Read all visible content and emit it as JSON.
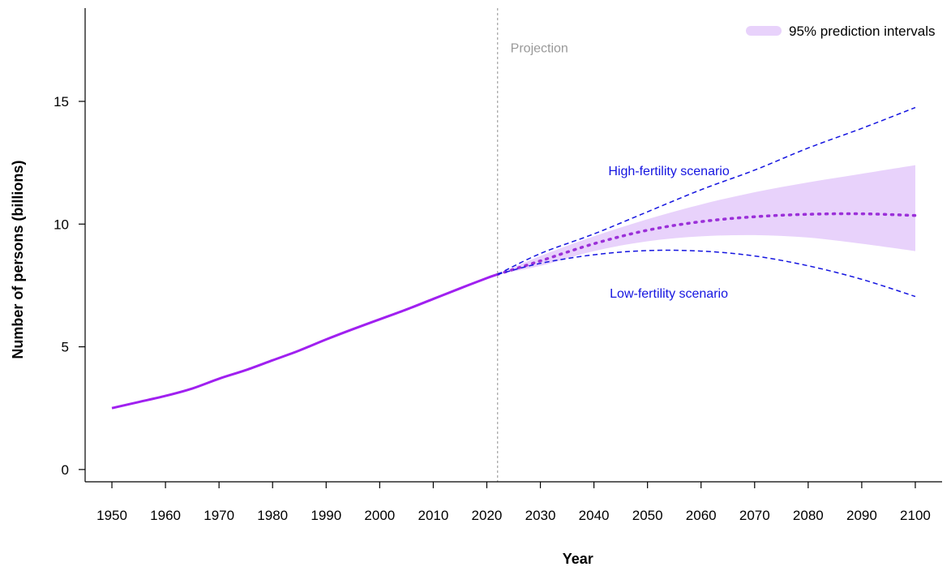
{
  "chart_data": {
    "type": "line",
    "title": "",
    "xlabel": "Year",
    "ylabel": "Number of persons (billions)",
    "xlim": [
      1945,
      2105
    ],
    "ylim": [
      -0.5,
      18.8
    ],
    "x_ticks": [
      1950,
      1960,
      1970,
      1980,
      1990,
      2000,
      2010,
      2020,
      2030,
      2040,
      2050,
      2060,
      2070,
      2080,
      2090,
      2100
    ],
    "y_ticks": [
      0,
      5,
      10,
      15
    ],
    "x_tick_labels": [
      "1950",
      "1960",
      "1970",
      "1980",
      "1990",
      "2000",
      "2010",
      "2020",
      "2030",
      "2040",
      "2050",
      "2060",
      "2070",
      "2080",
      "2090",
      "2100"
    ],
    "y_tick_labels": [
      "0",
      "5",
      "10",
      "15"
    ],
    "projection_start": 2022,
    "projection_label": "Projection",
    "legend": {
      "label": "95% prediction intervals",
      "position": "top-right"
    },
    "annotations": {
      "high": {
        "text": "High-fertility scenario",
        "x": 2054,
        "y": 12.0
      },
      "low": {
        "text": "Low-fertility scenario",
        "x": 2054,
        "y": 7.0
      }
    },
    "colors": {
      "observed": "#a020f0",
      "median": "#9b30d9",
      "scenario": "#1515e0",
      "interval": "#e8d2fb",
      "projection_line": "#aaaaaa",
      "projection_text": "#999999"
    },
    "series": [
      {
        "style": "solid",
        "x": [
          1950,
          1955,
          1960,
          1965,
          1970,
          1975,
          1980,
          1985,
          1990,
          1995,
          2000,
          2005,
          2010,
          2015,
          2020,
          2022
        ],
        "y": [
          2.5,
          2.75,
          3.0,
          3.3,
          3.7,
          4.05,
          4.45,
          4.85,
          5.3,
          5.72,
          6.12,
          6.52,
          6.95,
          7.38,
          7.8,
          7.95
        ]
      },
      {
        "name": "95% prediction intervals",
        "style": "band",
        "x": [
          2022,
          2030,
          2040,
          2050,
          2060,
          2070,
          2080,
          2090,
          2100
        ],
        "lower": [
          7.95,
          8.3,
          8.9,
          9.3,
          9.5,
          9.55,
          9.45,
          9.2,
          8.9
        ],
        "upper": [
          7.95,
          8.7,
          9.5,
          10.2,
          10.8,
          11.3,
          11.7,
          12.05,
          12.4
        ]
      },
      {
        "style": "dotted",
        "x": [
          2022,
          2030,
          2040,
          2050,
          2060,
          2070,
          2080,
          2090,
          2100
        ],
        "y": [
          7.95,
          8.5,
          9.2,
          9.75,
          10.1,
          10.3,
          10.4,
          10.42,
          10.35
        ]
      },
      {
        "style": "dashed",
        "x": [
          2022,
          2030,
          2040,
          2050,
          2060,
          2070,
          2080,
          2090,
          2100
        ],
        "y": [
          7.95,
          8.8,
          9.6,
          10.5,
          11.4,
          12.2,
          13.1,
          13.9,
          14.75
        ]
      },
      {
        "style": "dashed",
        "x": [
          2022,
          2030,
          2040,
          2050,
          2060,
          2070,
          2080,
          2090,
          2100
        ],
        "y": [
          7.95,
          8.4,
          8.75,
          8.92,
          8.9,
          8.7,
          8.3,
          7.75,
          7.05
        ]
      }
    ]
  }
}
